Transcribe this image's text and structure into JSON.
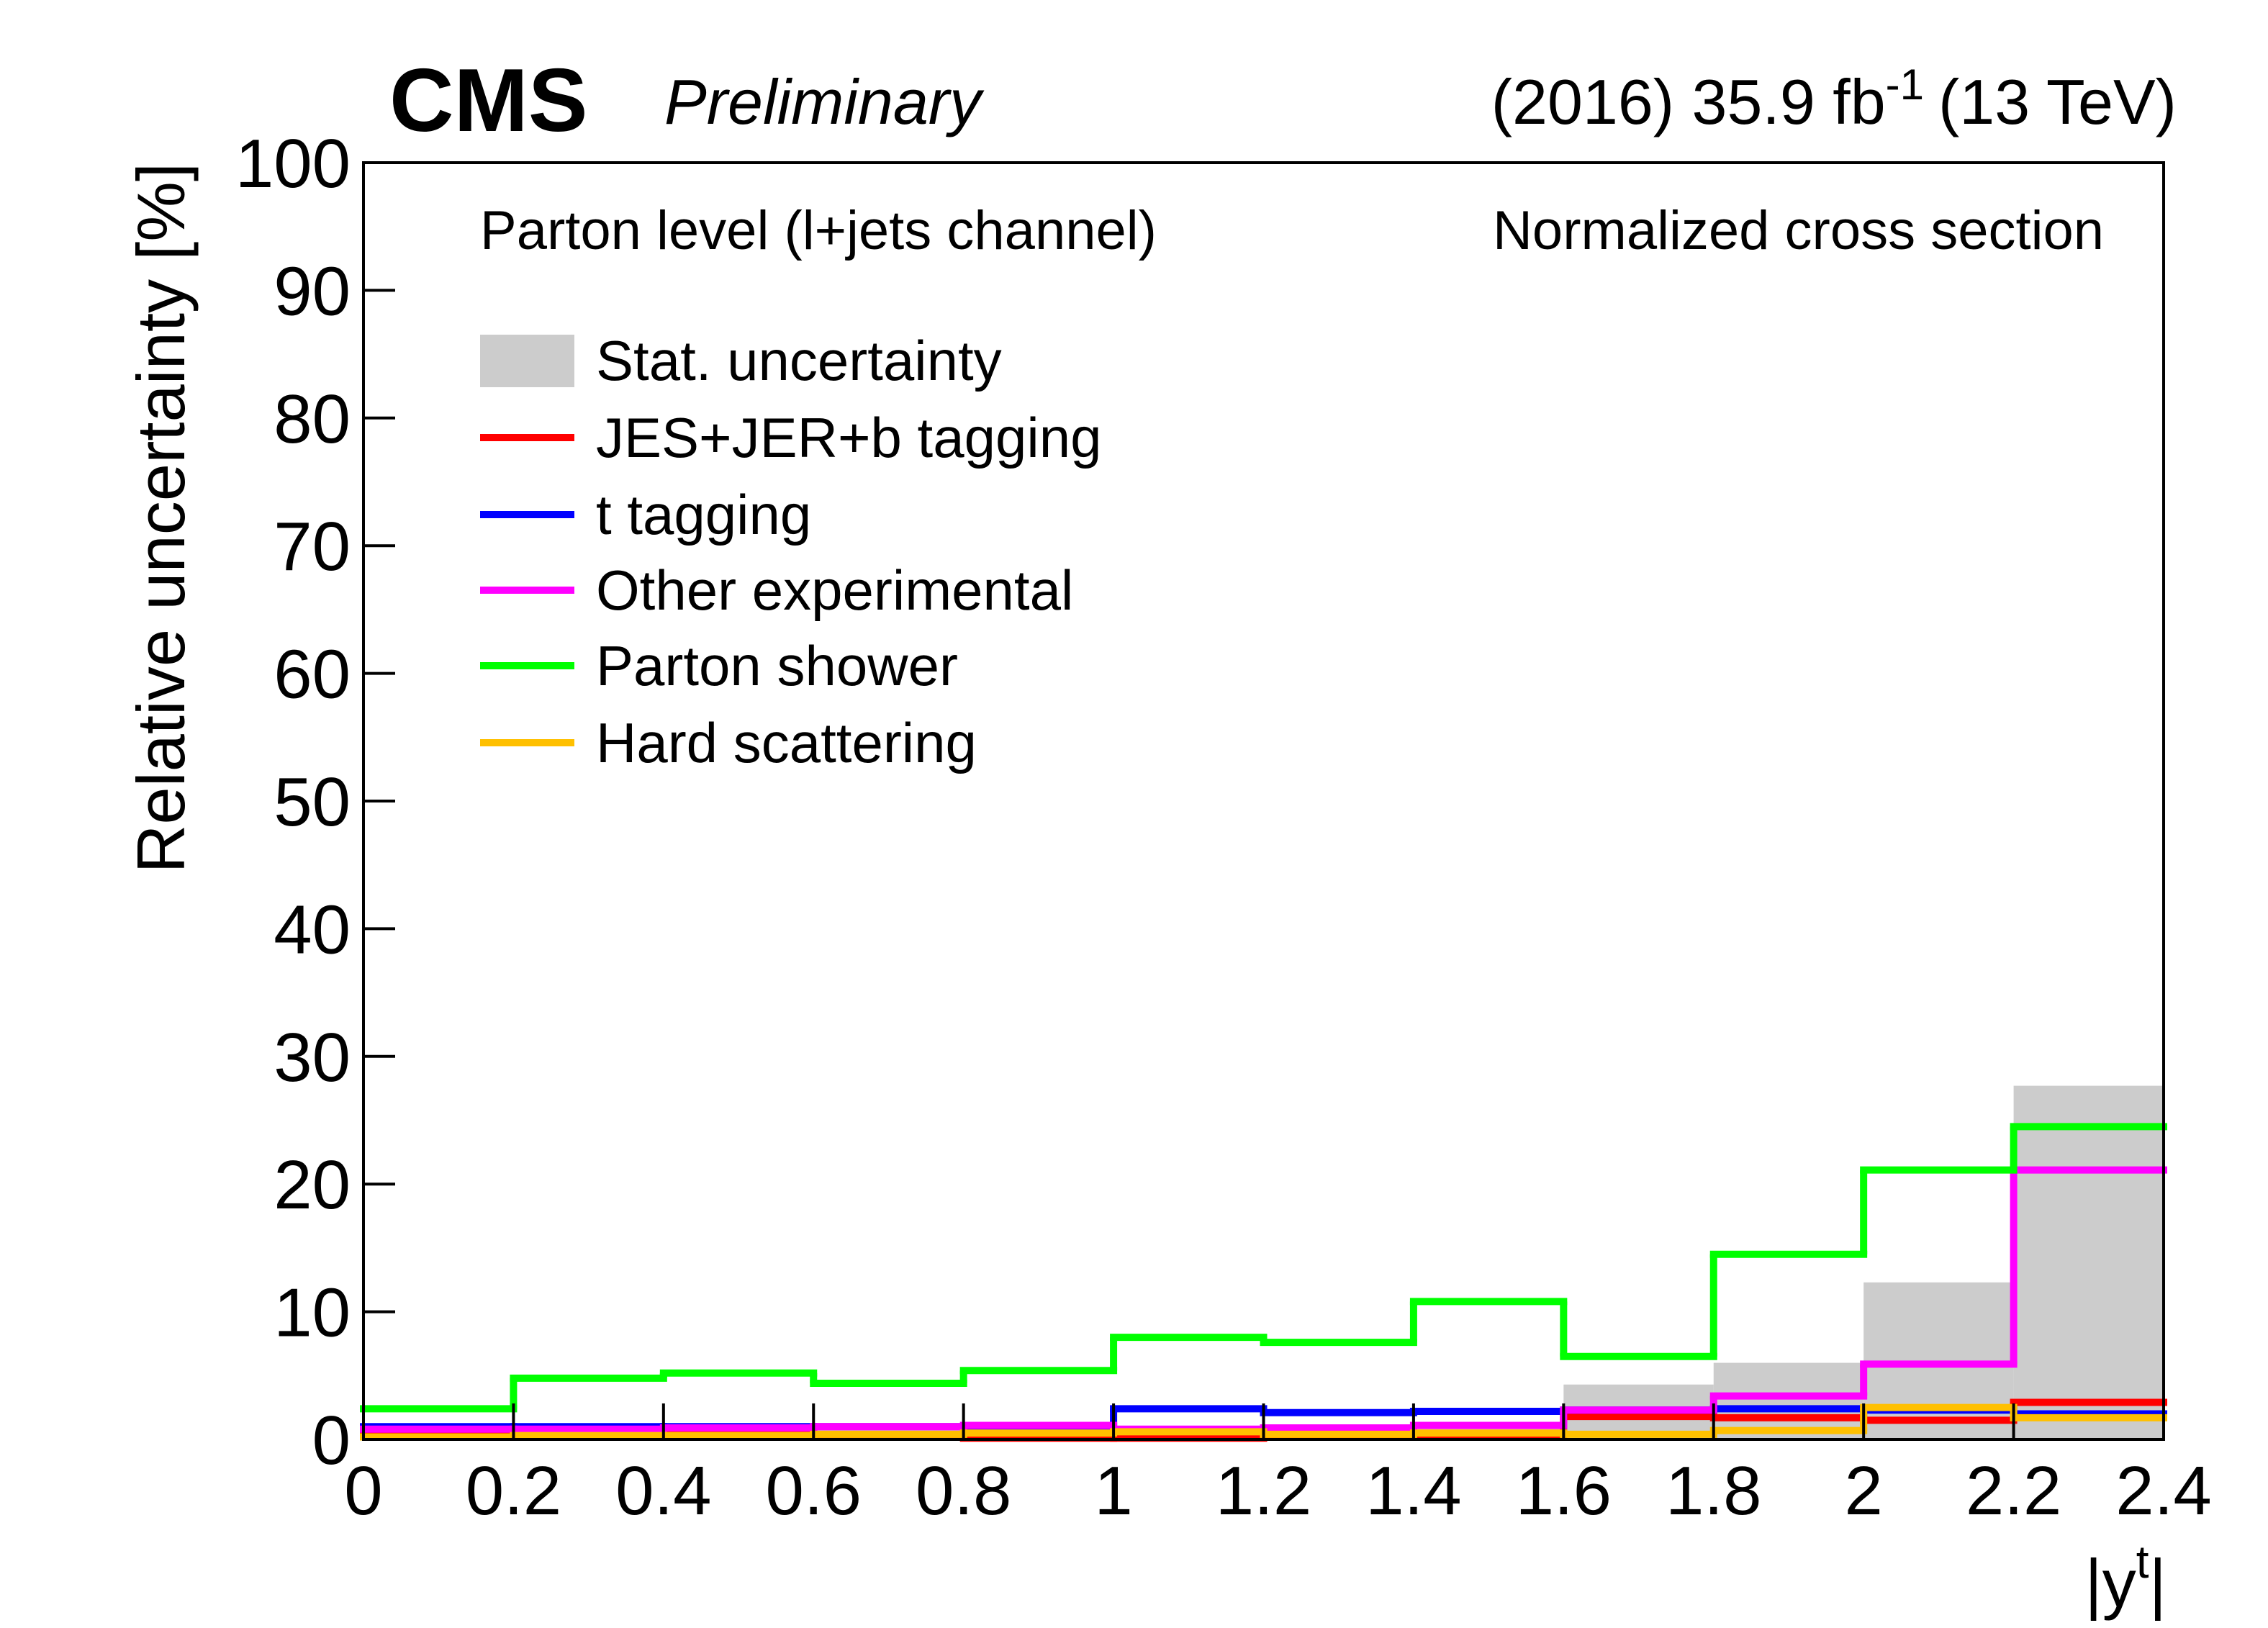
{
  "chart_data": {
    "type": "step_histogram",
    "experiment": "CMS",
    "status": "Preliminary",
    "lumi": "(2016) 35.9 fb",
    "lumi_superscript": "-1",
    "energy": "(13 TeV)",
    "annotations": [
      "Parton level (l+jets channel)",
      "Normalized cross section"
    ],
    "y_label": "Relative uncertainty [%]",
    "x_label": "|y",
    "x_label_superscript": "t",
    "x_label_end": "|",
    "bins": [
      0,
      0.2,
      0.4,
      0.6,
      0.8,
      1,
      1.2,
      1.4,
      1.6,
      1.8,
      2,
      2.2,
      2.4
    ],
    "series": [
      {
        "name": "Stat. uncertainty",
        "color": "#cccccc",
        "draw": "fill",
        "values": [
          0.5,
          0.5,
          0.6,
          0.6,
          0.7,
          0.8,
          1.0,
          1.3,
          4.3,
          6.0,
          12.3,
          27.7
        ]
      },
      {
        "name": "JES+JER+b tagging",
        "color": "#ff0000",
        "draw": "step",
        "values": [
          0.5,
          0.5,
          0.5,
          0.4,
          0.1,
          0.1,
          0.2,
          0.2,
          1.8,
          1.7,
          1.5,
          2.9
        ]
      },
      {
        "name": "t tagging",
        "color": "#0000ff",
        "draw": "step",
        "values": [
          1.0,
          1.0,
          1.0,
          1.0,
          1.0,
          2.4,
          2.1,
          2.2,
          2.3,
          2.4,
          2.3,
          2.0
        ]
      },
      {
        "name": "Other experimental",
        "color": "#ff00ff",
        "draw": "step",
        "values": [
          0.8,
          0.8,
          0.9,
          1.0,
          1.1,
          0.8,
          0.9,
          1.1,
          2.3,
          3.4,
          5.9,
          21.1
        ]
      },
      {
        "name": "Parton shower",
        "color": "#00ff00",
        "draw": "step",
        "values": [
          2.4,
          4.8,
          5.2,
          4.4,
          5.4,
          8.0,
          7.6,
          10.8,
          6.5,
          14.5,
          21.1,
          24.5
        ]
      },
      {
        "name": "Hard scattering",
        "color": "#ffc000",
        "draw": "step",
        "values": [
          0.2,
          0.3,
          0.3,
          0.4,
          0.5,
          0.6,
          0.4,
          0.5,
          0.4,
          0.7,
          2.5,
          1.7
        ]
      }
    ],
    "xlim": [
      0,
      2.4
    ],
    "xticks": [
      0,
      0.2,
      0.4,
      0.6,
      0.8,
      1,
      1.2,
      1.4,
      1.6,
      1.8,
      2,
      2.2,
      2.4
    ],
    "ylim": [
      0,
      100
    ],
    "yticks": [
      0,
      10,
      20,
      30,
      40,
      50,
      60,
      70,
      80,
      90,
      100
    ]
  }
}
